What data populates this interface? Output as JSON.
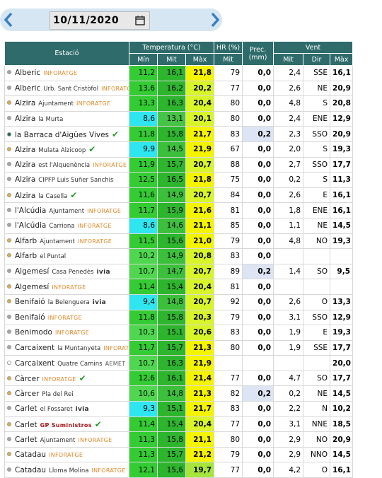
{
  "header": {
    "date": "10/11/2020"
  },
  "table": {
    "group_headers": [
      "Estació",
      "Temperatura (°C)",
      "HR (%)",
      "Prec. (mm)",
      "Vent"
    ],
    "sub_headers": [
      "Mín",
      "Mit",
      "Màx",
      "Mit",
      "Mit",
      "Dir",
      "Màx"
    ],
    "rows": [
      {
        "name": "Alberic",
        "place": null,
        "badge": "INFORATGE",
        "check": false,
        "dot": "#a6a6a6",
        "cells": [
          "11,2",
          "16,1",
          "21,8",
          "79",
          "0,0",
          "2,4",
          "SSE",
          "16,1"
        ]
      },
      {
        "name": "Alberic",
        "place": "Urb. Sant Cristòfol",
        "badge": "INFORATGE",
        "check": false,
        "dot": "#a6a6a6",
        "cells": [
          "13,6",
          "16,2",
          "20,2",
          "77",
          "0,0",
          "2,6",
          "NE",
          "20,9"
        ]
      },
      {
        "name": "Alzira",
        "place": "Ajuntament",
        "badge": "INFORATGE",
        "check": false,
        "dot": "#e0b040",
        "cells": [
          "13,3",
          "16,3",
          "20,4",
          "80",
          "0,0",
          "4,8",
          "S",
          "20,8"
        ]
      },
      {
        "name": "Alzira",
        "place": "la Murta",
        "badge": null,
        "check": false,
        "dot": "#a6a6a6",
        "cells": [
          "8,6",
          "13,1",
          "20,1",
          "80",
          "0,0",
          "2,4",
          "ENE",
          "12,9"
        ]
      },
      {
        "name": "la Barraca d'Aigües Vives",
        "place": null,
        "badge": null,
        "check": true,
        "dot": "#1e6b4a",
        "cells": [
          "11,8",
          "15,8",
          "21,7",
          "83",
          "0,2",
          "2,3",
          "SSO",
          "20,9"
        ]
      },
      {
        "name": "Alzira",
        "place": "Mulata Alzicoop",
        "badge": null,
        "check": true,
        "dot": "#e0b040",
        "cells": [
          "9,9",
          "14,5",
          "21,9",
          "67",
          "0,0",
          "2,0",
          "S",
          "19,3"
        ]
      },
      {
        "name": "Alzira",
        "place": "est l'Alquenència",
        "badge": "INFORATGE",
        "check": false,
        "dot": "#a6a6a6",
        "cells": [
          "11,9",
          "15,7",
          "20,7",
          "88",
          "0,0",
          "2,7",
          "SSO",
          "17,7"
        ]
      },
      {
        "name": "Alzira",
        "place": "CIPFP Luis Suñer Sanchis",
        "badge": null,
        "check": false,
        "dot": "#a6a6a6",
        "cells": [
          "12,5",
          "16,5",
          "21,8",
          "75",
          "0,0",
          "0,2",
          "S",
          "11,3"
        ]
      },
      {
        "name": "Alzira",
        "place": "la Casella",
        "badge": null,
        "check": true,
        "dot": "#e0b040",
        "cells": [
          "11,6",
          "14,9",
          "20,7",
          "84",
          "0,0",
          "2,6",
          "E",
          "16,1"
        ]
      },
      {
        "name": "l'Alcúdia",
        "place": "Ajuntament",
        "badge": "INFORATGE",
        "check": false,
        "dot": "#a6a6a6",
        "cells": [
          "11,7",
          "15,9",
          "21,6",
          "81",
          "0,0",
          "1,8",
          "ENE",
          "16,1"
        ]
      },
      {
        "name": "l'Alcúdia",
        "place": "Carriona",
        "badge": "INFORATGE",
        "check": false,
        "dot": "#a6a6a6",
        "cells": [
          "8,6",
          "14,6",
          "21,1",
          "85",
          "0,0",
          "1,1",
          "NE",
          "14,5"
        ]
      },
      {
        "name": "Alfarb",
        "place": "Ajuntament",
        "badge": "INFORATGE",
        "check": false,
        "dot": "#e0b040",
        "cells": [
          "11,5",
          "15,6",
          "21,0",
          "79",
          "0,0",
          "4,8",
          "NO",
          "19,3"
        ]
      },
      {
        "name": "Alfarb",
        "place": "el Puntal",
        "badge": null,
        "check": false,
        "dot": "#e0b040",
        "cells": [
          "10,2",
          "14,9",
          "20,8",
          "83",
          "0,0",
          null,
          null,
          null
        ]
      },
      {
        "name": "Algemesí",
        "place": "Casa Penedès",
        "badge": "ivia",
        "check": false,
        "dot": "#a6a6a6",
        "cells": [
          "10,7",
          "14,7",
          "20,7",
          "89",
          "0,2",
          "1,4",
          "SO",
          "9,5"
        ]
      },
      {
        "name": "Algemesí",
        "place": null,
        "badge": "INFORATGE",
        "check": false,
        "dot": "#e0b040",
        "cells": [
          "11,4",
          "15,4",
          "20,4",
          "81",
          "0,0",
          null,
          null,
          null
        ]
      },
      {
        "name": "Benifaió",
        "place": "la Belenguera",
        "badge": "ivia",
        "check": false,
        "dot": "#e0b040",
        "cells": [
          "9,4",
          "14,8",
          "20,7",
          "92",
          "0,0",
          "2,6",
          "O",
          "13,3"
        ]
      },
      {
        "name": "Benifaió",
        "place": null,
        "badge": "INFORATGE",
        "check": false,
        "dot": "#a6a6a6",
        "cells": [
          "11,8",
          "15,8",
          "20,3",
          "79",
          "0,0",
          "3,1",
          "SSO",
          "12,9"
        ]
      },
      {
        "name": "Benimodo",
        "place": null,
        "badge": "INFORATGE",
        "check": false,
        "dot": "#a6a6a6",
        "cells": [
          "10,3",
          "15,1",
          "20,6",
          "83",
          "0,0",
          "1,9",
          "E",
          "19,3"
        ]
      },
      {
        "name": "Carcaixent",
        "place": "la Muntanyeta",
        "badge": "INFORATGE",
        "check": false,
        "dot": "#a6a6a6",
        "cells": [
          "11,7",
          "15,7",
          "21,3",
          "80",
          "0,0",
          "1,9",
          "SSE",
          "17,7"
        ]
      },
      {
        "name": "Carcaixent",
        "place": "Quatre Camins",
        "badge": "AEMET",
        "check": false,
        "dot": "#ffffff",
        "cells": [
          "10,7",
          "16,3",
          "21,9",
          null,
          null,
          null,
          null,
          "20,0"
        ]
      },
      {
        "name": "Càrcer",
        "place": null,
        "badge": "INFORATGE",
        "check": true,
        "dot": "#e0b040",
        "cells": [
          "12,6",
          "16,1",
          "21,4",
          "77",
          "0,0",
          "4,7",
          "SO",
          "17,7"
        ]
      },
      {
        "name": "Càrcer",
        "place": "Pla del Rei",
        "badge": null,
        "check": false,
        "dot": "#e0b040",
        "cells": [
          "10,6",
          "14,8",
          "21,3",
          "82",
          "0,2",
          "0,2",
          "NE",
          "14,5"
        ]
      },
      {
        "name": "Carlet",
        "place": "el Fossaret",
        "badge": "ivia",
        "check": false,
        "dot": "#a6a6a6",
        "cells": [
          "9,3",
          "15,1",
          "21,7",
          "83",
          "0,0",
          "2,2",
          "N",
          "10,2"
        ]
      },
      {
        "name": "Carlet",
        "place": null,
        "badge": "GP Suministros",
        "check": true,
        "dot": "#e0b040",
        "cells": [
          "11,4",
          "15,4",
          "20,4",
          "77",
          "0,0",
          "3,1",
          "NNE",
          "18,5"
        ]
      },
      {
        "name": "Carlet",
        "place": "Ajuntament",
        "badge": "INFORATGE",
        "check": false,
        "dot": "#a6a6a6",
        "cells": [
          "11,3",
          "15,8",
          "21,1",
          "80",
          "0,0",
          "2,9",
          "NO",
          "20,9"
        ]
      },
      {
        "name": "Catadau",
        "place": null,
        "badge": "INFORATGE",
        "check": false,
        "dot": "#e0b040",
        "cells": [
          "11,3",
          "15,7",
          "21,2",
          "79",
          "0,0",
          "2,9",
          "NNO",
          "14,5"
        ]
      },
      {
        "name": "Catadau",
        "place": "Lloma Molina",
        "badge": "INFORATGE",
        "check": false,
        "dot": "#a6a6a6",
        "cells": [
          "12,1",
          "15,6",
          "19,7",
          "77",
          "0,0",
          "4,2",
          "O",
          "16,1"
        ]
      }
    ]
  }
}
